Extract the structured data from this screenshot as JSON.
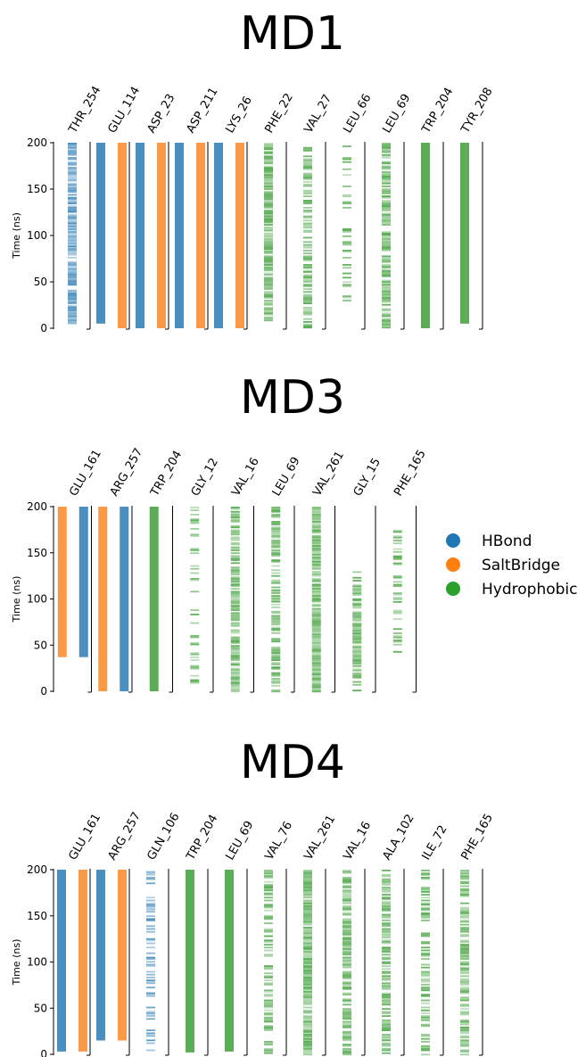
{
  "colors": {
    "HBond": "#4a8fc0",
    "SaltBridge": "#fa9a48",
    "Hydrophobic": "#5aad55"
  },
  "legend": [
    {
      "name": "HBond",
      "color": "#1f77b4"
    },
    {
      "name": "SaltBridge",
      "color": "#ff7f0e"
    },
    {
      "name": "Hydrophobic",
      "color": "#2ca02c"
    }
  ],
  "chart_data": [
    {
      "type": "bar",
      "title": "MD1",
      "ylabel": "Time (ns)",
      "ylim": [
        0,
        200
      ],
      "yticks": [
        "0",
        "50",
        "100",
        "150",
        "200"
      ],
      "columns": [
        {
          "residue": "THR_254",
          "bars": [
            {
              "type": "HBond",
              "start": 5,
              "end": 200,
              "density": 0.9
            }
          ]
        },
        {
          "residue": "GLU_114",
          "bars": [
            {
              "type": "HBond",
              "start": 5,
              "end": 200,
              "density": 1
            },
            {
              "type": "SaltBridge",
              "start": 0,
              "end": 200,
              "density": 1
            }
          ]
        },
        {
          "residue": "ASP_23",
          "bars": [
            {
              "type": "HBond",
              "start": 0,
              "end": 200,
              "density": 1
            },
            {
              "type": "SaltBridge",
              "start": 0,
              "end": 200,
              "density": 1
            }
          ]
        },
        {
          "residue": "ASP_211",
          "bars": [
            {
              "type": "HBond",
              "start": 0,
              "end": 200,
              "density": 1
            },
            {
              "type": "SaltBridge",
              "start": 0,
              "end": 200,
              "density": 1
            }
          ]
        },
        {
          "residue": "LYS_26",
          "bars": [
            {
              "type": "HBond",
              "start": 0,
              "end": 200,
              "density": 1
            },
            {
              "type": "SaltBridge",
              "start": 0,
              "end": 200,
              "density": 1
            }
          ]
        },
        {
          "residue": "PHE_22",
          "bars": [
            {
              "type": "Hydrophobic",
              "start": 5,
              "end": 200,
              "density": 0.8
            }
          ]
        },
        {
          "residue": "VAL_27",
          "bars": [
            {
              "type": "Hydrophobic",
              "start": 0,
              "end": 200,
              "density": 0.6
            }
          ]
        },
        {
          "residue": "LEU_66",
          "bars": [
            {
              "type": "Hydrophobic",
              "start": 28,
              "end": 200,
              "density": 0.35
            }
          ]
        },
        {
          "residue": "LEU_69",
          "bars": [
            {
              "type": "Hydrophobic",
              "start": 0,
              "end": 200,
              "density": 0.75
            }
          ]
        },
        {
          "residue": "TRP_204",
          "bars": [
            {
              "type": "Hydrophobic",
              "start": 0,
              "end": 200,
              "density": 1
            }
          ]
        },
        {
          "residue": "TYR_208",
          "bars": [
            {
              "type": "Hydrophobic",
              "start": 5,
              "end": 200,
              "density": 1
            }
          ]
        }
      ]
    },
    {
      "type": "bar",
      "title": "MD3",
      "ylabel": "Time (ns)",
      "ylim": [
        0,
        200
      ],
      "yticks": [
        "0",
        "50",
        "100",
        "150",
        "200"
      ],
      "columns": [
        {
          "residue": "GLU_161",
          "bars": [
            {
              "type": "SaltBridge",
              "start": 37,
              "end": 200,
              "density": 1
            },
            {
              "type": "HBond",
              "start": 37,
              "end": 200,
              "density": 1
            }
          ]
        },
        {
          "residue": "ARG_257",
          "bars": [
            {
              "type": "SaltBridge",
              "start": 0,
              "end": 200,
              "density": 1
            },
            {
              "type": "HBond",
              "start": 0,
              "end": 200,
              "density": 1
            }
          ]
        },
        {
          "residue": "TRP_204",
          "bars": [
            {
              "type": "Hydrophobic",
              "start": 0,
              "end": 200,
              "density": 1
            }
          ]
        },
        {
          "residue": "GLY_12",
          "bars": [
            {
              "type": "Hydrophobic",
              "start": 0,
              "end": 200,
              "density": 0.3
            }
          ]
        },
        {
          "residue": "VAL_16",
          "bars": [
            {
              "type": "Hydrophobic",
              "start": 0,
              "end": 200,
              "density": 0.85
            }
          ]
        },
        {
          "residue": "LEU_69",
          "bars": [
            {
              "type": "Hydrophobic",
              "start": 0,
              "end": 200,
              "density": 0.7
            }
          ]
        },
        {
          "residue": "VAL_261",
          "bars": [
            {
              "type": "Hydrophobic",
              "start": 0,
              "end": 200,
              "density": 0.95
            }
          ]
        },
        {
          "residue": "GLY_15",
          "bars": [
            {
              "type": "Hydrophobic",
              "start": 0,
              "end": 130,
              "density": 0.7
            }
          ]
        },
        {
          "residue": "PHE_165",
          "bars": [
            {
              "type": "Hydrophobic",
              "start": 38,
              "end": 175,
              "density": 0.45
            }
          ]
        }
      ]
    },
    {
      "type": "bar",
      "title": "MD4",
      "ylabel": "Time (ns)",
      "ylim": [
        0,
        200
      ],
      "yticks": [
        "0",
        "50",
        "100",
        "150",
        "200"
      ],
      "columns": [
        {
          "residue": "GLU_161",
          "bars": [
            {
              "type": "HBond",
              "start": 3,
              "end": 200,
              "density": 1
            },
            {
              "type": "SaltBridge",
              "start": 3,
              "end": 200,
              "density": 1
            }
          ]
        },
        {
          "residue": "ARG_257",
          "bars": [
            {
              "type": "HBond",
              "start": 15,
              "end": 200,
              "density": 1
            },
            {
              "type": "SaltBridge",
              "start": 15,
              "end": 200,
              "density": 1
            }
          ]
        },
        {
          "residue": "GLN_106",
          "bars": [
            {
              "type": "HBond",
              "start": 5,
              "end": 200,
              "density": 0.35
            }
          ]
        },
        {
          "residue": "TRP_204",
          "bars": [
            {
              "type": "Hydrophobic",
              "start": 2,
              "end": 200,
              "density": 1
            }
          ]
        },
        {
          "residue": "LEU_69",
          "bars": [
            {
              "type": "Hydrophobic",
              "start": 3,
              "end": 200,
              "density": 1
            }
          ]
        },
        {
          "residue": "VAL_76",
          "bars": [
            {
              "type": "Hydrophobic",
              "start": 0,
              "end": 200,
              "density": 0.55
            }
          ]
        },
        {
          "residue": "VAL_261",
          "bars": [
            {
              "type": "Hydrophobic",
              "start": 0,
              "end": 200,
              "density": 0.95
            }
          ]
        },
        {
          "residue": "VAL_16",
          "bars": [
            {
              "type": "Hydrophobic",
              "start": 0,
              "end": 200,
              "density": 0.85
            }
          ]
        },
        {
          "residue": "ALA_102",
          "bars": [
            {
              "type": "Hydrophobic",
              "start": 0,
              "end": 200,
              "density": 0.7
            }
          ]
        },
        {
          "residue": "ILE_72",
          "bars": [
            {
              "type": "Hydrophobic",
              "start": 0,
              "end": 200,
              "density": 0.6
            }
          ]
        },
        {
          "residue": "PHE_165",
          "bars": [
            {
              "type": "Hydrophobic",
              "start": 0,
              "end": 200,
              "density": 0.75
            }
          ]
        }
      ]
    }
  ]
}
